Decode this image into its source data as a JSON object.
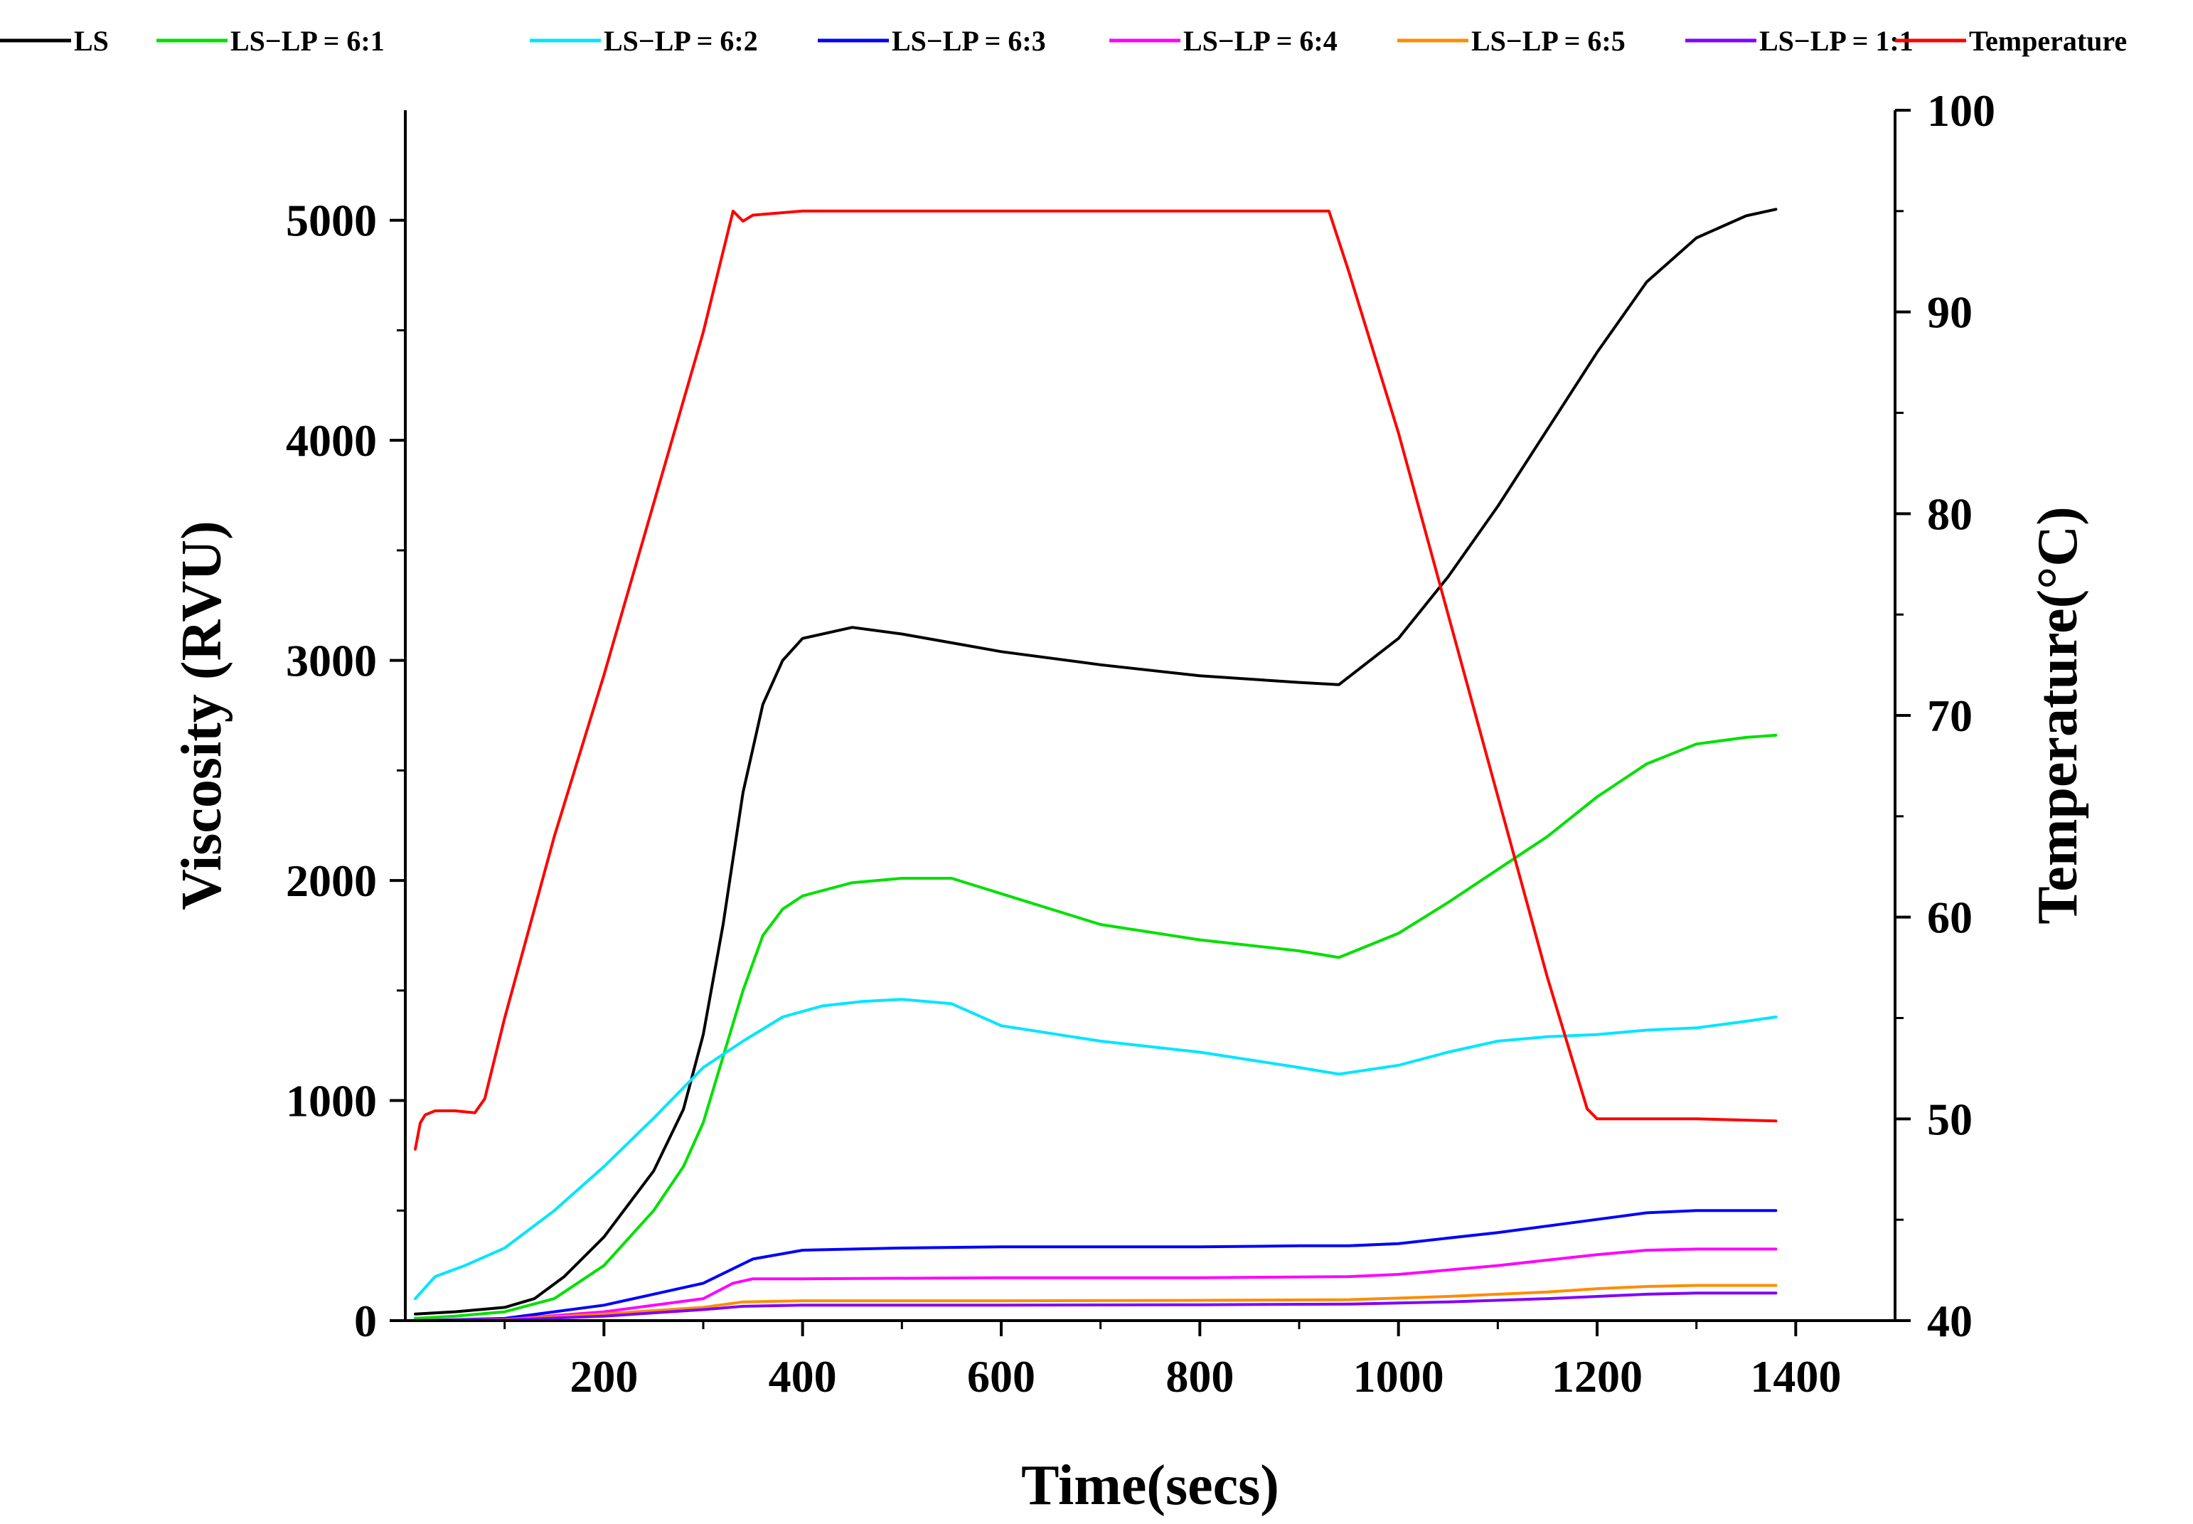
{
  "chart_data": {
    "type": "line",
    "title": "",
    "xlabel": "Time(secs)",
    "ylabel": "Viscosity (RVU)",
    "y2label": "Temperature(°C)",
    "xlim": [
      0,
      1500
    ],
    "ylim": [
      0,
      5500
    ],
    "y2lim": [
      40,
      100
    ],
    "xticks": [
      200,
      400,
      600,
      800,
      1000,
      1200,
      1400
    ],
    "yticks": [
      0,
      1000,
      2000,
      3000,
      4000,
      5000
    ],
    "y2ticks": [
      40,
      50,
      60,
      70,
      80,
      90,
      100
    ],
    "legend_position": "top",
    "series": [
      {
        "name": "LS",
        "color": "#000000",
        "axis": "left",
        "x": [
          10,
          50,
          100,
          130,
          160,
          200,
          250,
          280,
          300,
          320,
          340,
          360,
          380,
          400,
          450,
          500,
          550,
          600,
          700,
          800,
          900,
          940,
          1000,
          1050,
          1100,
          1150,
          1200,
          1250,
          1300,
          1350,
          1380
        ],
        "y": [
          30,
          40,
          60,
          100,
          200,
          380,
          680,
          960,
          1300,
          1800,
          2400,
          2800,
          3000,
          3100,
          3150,
          3120,
          3080,
          3040,
          2980,
          2930,
          2900,
          2890,
          3100,
          3380,
          3700,
          4050,
          4400,
          4720,
          4920,
          5020,
          5050
        ]
      },
      {
        "name": "LS−LP = 6:1",
        "color": "#00e000",
        "axis": "left",
        "x": [
          10,
          50,
          100,
          150,
          200,
          250,
          280,
          300,
          320,
          340,
          360,
          380,
          400,
          450,
          500,
          550,
          600,
          700,
          800,
          900,
          940,
          1000,
          1050,
          1100,
          1150,
          1200,
          1250,
          1300,
          1350,
          1380
        ],
        "y": [
          10,
          20,
          40,
          100,
          250,
          500,
          700,
          900,
          1200,
          1500,
          1750,
          1870,
          1930,
          1990,
          2010,
          2010,
          1940,
          1800,
          1730,
          1680,
          1650,
          1760,
          1900,
          2050,
          2200,
          2380,
          2530,
          2620,
          2650,
          2660
        ]
      },
      {
        "name": "LS−LP = 6:2",
        "color": "#00e5ff",
        "axis": "left",
        "x": [
          10,
          30,
          60,
          100,
          150,
          200,
          250,
          300,
          340,
          380,
          420,
          460,
          500,
          550,
          600,
          700,
          800,
          900,
          940,
          1000,
          1050,
          1100,
          1150,
          1200,
          1250,
          1300,
          1350,
          1380
        ],
        "y": [
          100,
          200,
          250,
          330,
          500,
          700,
          920,
          1150,
          1270,
          1380,
          1430,
          1450,
          1460,
          1440,
          1340,
          1270,
          1220,
          1150,
          1120,
          1160,
          1220,
          1270,
          1290,
          1300,
          1320,
          1330,
          1360,
          1380
        ]
      },
      {
        "name": "LS−LP = 6:3",
        "color": "#0000ff",
        "axis": "left",
        "x": [
          10,
          100,
          200,
          300,
          350,
          400,
          500,
          600,
          700,
          800,
          900,
          950,
          1000,
          1100,
          1200,
          1250,
          1300,
          1380
        ],
        "y": [
          0,
          10,
          70,
          170,
          280,
          320,
          330,
          335,
          335,
          335,
          340,
          340,
          350,
          400,
          460,
          490,
          500,
          500
        ]
      },
      {
        "name": "LS−LP = 6:4",
        "color": "#ff00ff",
        "axis": "left",
        "x": [
          10,
          100,
          200,
          300,
          330,
          350,
          400,
          600,
          800,
          950,
          1000,
          1100,
          1200,
          1250,
          1300,
          1380
        ],
        "y": [
          0,
          5,
          40,
          100,
          170,
          190,
          190,
          195,
          195,
          200,
          210,
          250,
          300,
          320,
          325,
          325
        ]
      },
      {
        "name": "LS−LP = 6:5",
        "color": "#ff8c00",
        "axis": "left",
        "x": [
          10,
          100,
          200,
          300,
          340,
          400,
          600,
          800,
          950,
          1050,
          1150,
          1200,
          1250,
          1300,
          1380
        ],
        "y": [
          0,
          5,
          30,
          60,
          85,
          90,
          90,
          92,
          95,
          110,
          130,
          145,
          155,
          160,
          160
        ]
      },
      {
        "name": "LS−LP = 1:1",
        "color": "#8000ff",
        "axis": "left",
        "x": [
          10,
          100,
          200,
          300,
          340,
          400,
          600,
          800,
          950,
          1050,
          1150,
          1200,
          1250,
          1300,
          1380
        ],
        "y": [
          0,
          3,
          20,
          50,
          65,
          70,
          70,
          72,
          75,
          85,
          100,
          110,
          120,
          125,
          125
        ]
      },
      {
        "name": "Temperature",
        "color": "#ff0000",
        "axis": "right",
        "x": [
          10,
          15,
          20,
          30,
          50,
          70,
          80,
          100,
          150,
          200,
          250,
          300,
          330,
          340,
          350,
          400,
          500,
          600,
          700,
          800,
          900,
          930,
          950,
          1000,
          1050,
          1100,
          1150,
          1190,
          1200,
          1250,
          1300,
          1380
        ],
        "y": [
          48.5,
          49.8,
          50.2,
          50.4,
          50.4,
          50.3,
          51.0,
          55.0,
          64.0,
          72.0,
          80.5,
          89.0,
          95.0,
          94.5,
          94.8,
          95.0,
          95.0,
          95.0,
          95.0,
          95.0,
          95.0,
          95.0,
          92.0,
          84.0,
          75.0,
          66.0,
          57.0,
          50.5,
          50.0,
          50.0,
          50.0,
          49.9
        ]
      }
    ]
  }
}
